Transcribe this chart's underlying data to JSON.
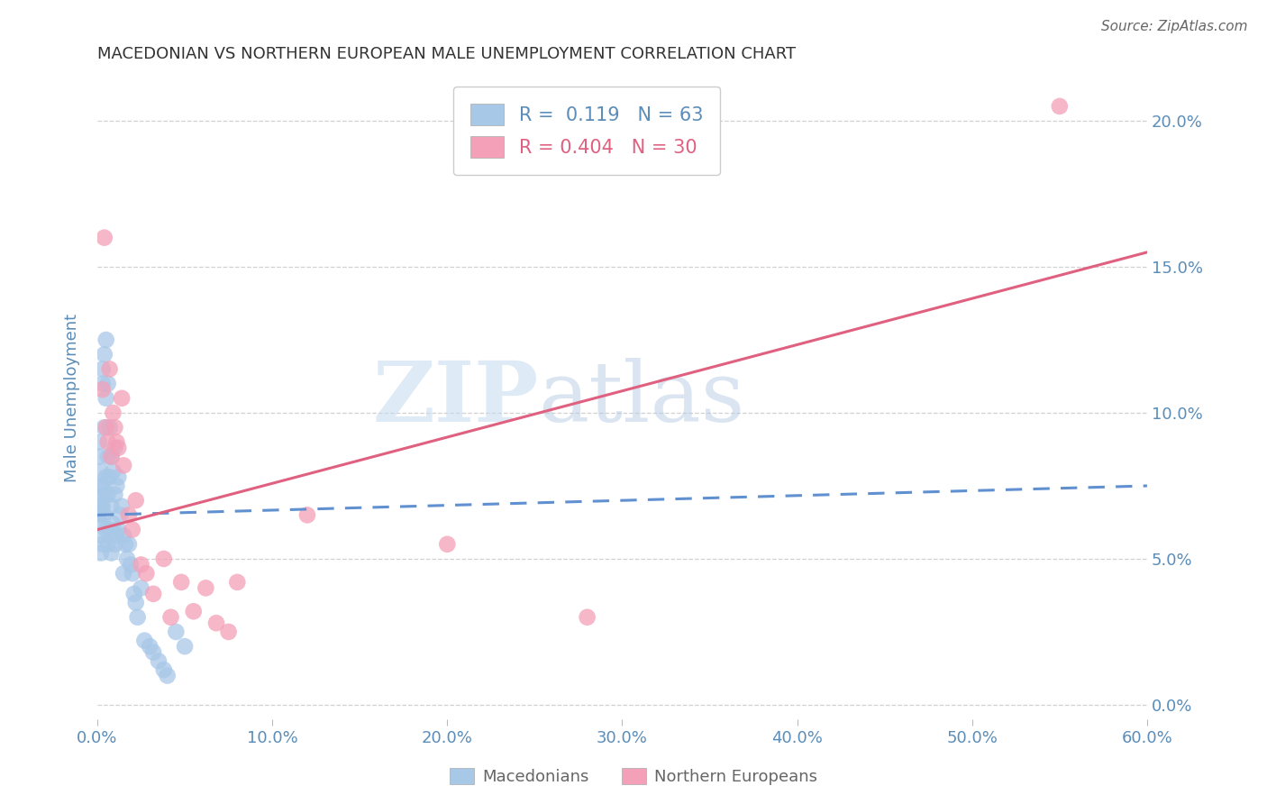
{
  "title": "MACEDONIAN VS NORTHERN EUROPEAN MALE UNEMPLOYMENT CORRELATION CHART",
  "source": "Source: ZipAtlas.com",
  "ylabel": "Male Unemployment",
  "xlabel_ticks": [
    "0.0%",
    "10.0%",
    "20.0%",
    "30.0%",
    "40.0%",
    "50.0%",
    "60.0%"
  ],
  "ylabel_ticks": [
    "0.0%",
    "5.0%",
    "10.0%",
    "15.0%",
    "20.0%"
  ],
  "xlim": [
    0.0,
    0.6
  ],
  "ylim": [
    -0.005,
    0.215
  ],
  "watermark_zip": "ZIP",
  "watermark_atlas": "atlas",
  "blue_color": "#A8C8E8",
  "pink_color": "#F4A0B8",
  "blue_line_color": "#6090D0",
  "pink_line_color": "#E06080",
  "title_color": "#333333",
  "axis_color": "#5B8DB8",
  "grid_color": "#CCCCCC",
  "macedonians_label": "Macedonians",
  "northern_europeans_label": "Northern Europeans",
  "legend_blue_r_val": "0.119",
  "legend_blue_n_val": "63",
  "legend_pink_r_val": "0.404",
  "legend_pink_n_val": "30",
  "blue_scatter_x": [
    0.001,
    0.001,
    0.001,
    0.001,
    0.002,
    0.002,
    0.002,
    0.002,
    0.002,
    0.002,
    0.003,
    0.003,
    0.003,
    0.003,
    0.003,
    0.004,
    0.004,
    0.004,
    0.004,
    0.005,
    0.005,
    0.005,
    0.005,
    0.006,
    0.006,
    0.006,
    0.006,
    0.007,
    0.007,
    0.007,
    0.008,
    0.008,
    0.008,
    0.009,
    0.009,
    0.01,
    0.01,
    0.01,
    0.011,
    0.011,
    0.012,
    0.012,
    0.013,
    0.014,
    0.015,
    0.015,
    0.016,
    0.017,
    0.018,
    0.019,
    0.02,
    0.021,
    0.022,
    0.023,
    0.025,
    0.027,
    0.03,
    0.032,
    0.035,
    0.038,
    0.04,
    0.045,
    0.05
  ],
  "blue_scatter_y": [
    0.09,
    0.085,
    0.07,
    0.065,
    0.08,
    0.075,
    0.068,
    0.062,
    0.058,
    0.052,
    0.115,
    0.11,
    0.075,
    0.068,
    0.055,
    0.12,
    0.095,
    0.072,
    0.065,
    0.125,
    0.105,
    0.078,
    0.06,
    0.11,
    0.085,
    0.072,
    0.055,
    0.095,
    0.078,
    0.06,
    0.085,
    0.068,
    0.052,
    0.08,
    0.062,
    0.088,
    0.072,
    0.055,
    0.075,
    0.058,
    0.078,
    0.06,
    0.065,
    0.068,
    0.058,
    0.045,
    0.055,
    0.05,
    0.055,
    0.048,
    0.045,
    0.038,
    0.035,
    0.03,
    0.04,
    0.022,
    0.02,
    0.018,
    0.015,
    0.012,
    0.01,
    0.025,
    0.02
  ],
  "pink_scatter_x": [
    0.003,
    0.004,
    0.005,
    0.006,
    0.007,
    0.008,
    0.009,
    0.01,
    0.011,
    0.012,
    0.014,
    0.015,
    0.018,
    0.02,
    0.022,
    0.025,
    0.028,
    0.032,
    0.038,
    0.042,
    0.048,
    0.055,
    0.062,
    0.068,
    0.075,
    0.08,
    0.12,
    0.2,
    0.28,
    0.55
  ],
  "pink_scatter_y": [
    0.108,
    0.16,
    0.095,
    0.09,
    0.115,
    0.085,
    0.1,
    0.095,
    0.09,
    0.088,
    0.105,
    0.082,
    0.065,
    0.06,
    0.07,
    0.048,
    0.045,
    0.038,
    0.05,
    0.03,
    0.042,
    0.032,
    0.04,
    0.028,
    0.025,
    0.042,
    0.065,
    0.055,
    0.03,
    0.205
  ],
  "blue_trend_x": [
    0.0,
    0.6
  ],
  "blue_trend_y": [
    0.065,
    0.075
  ],
  "pink_trend_x": [
    0.0,
    0.6
  ],
  "pink_trend_y": [
    0.06,
    0.155
  ]
}
